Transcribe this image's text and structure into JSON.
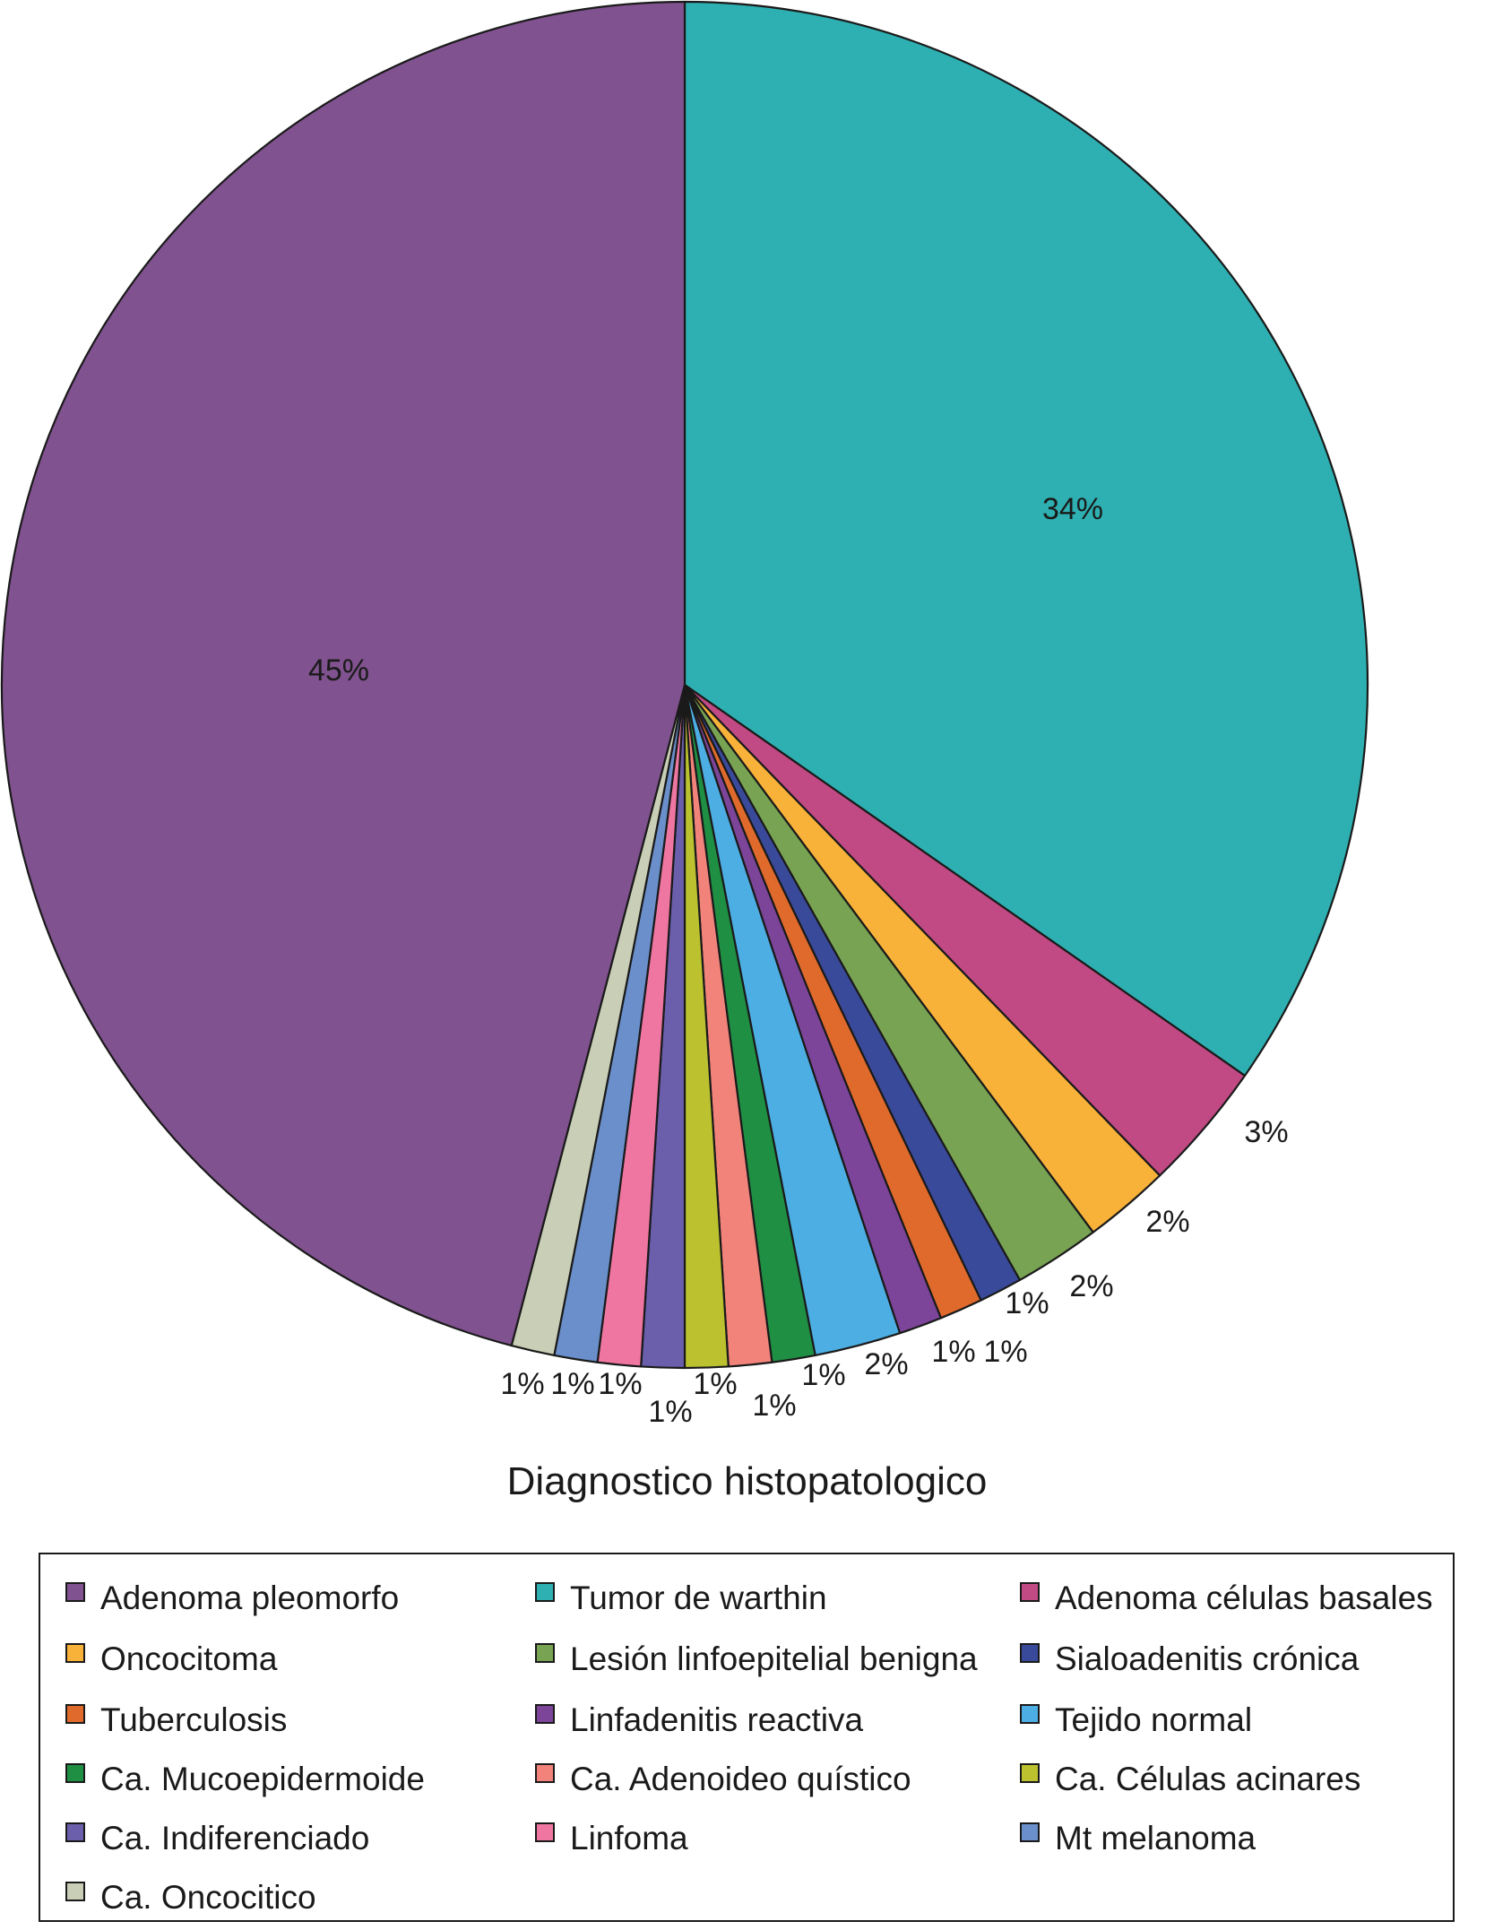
{
  "chart_data": {
    "type": "pie",
    "title": "Diagnostico histopatologico",
    "legend_position": "bottom",
    "slices": [
      {
        "label": "Tumor de warthin",
        "value": 34,
        "display": "34%",
        "color": "#2eb0b2"
      },
      {
        "label": "Adenoma células basales",
        "value": 3,
        "display": "3%",
        "color": "#c14a84"
      },
      {
        "label": "Oncocitoma",
        "value": 2,
        "display": "2%",
        "color": "#f8b23a"
      },
      {
        "label": "Lesión linfoepitelial benigna",
        "value": 2,
        "display": "2%",
        "color": "#78a352"
      },
      {
        "label": "Sialoadenitis crónica",
        "value": 1,
        "display": "1%",
        "color": "#3a4a9a"
      },
      {
        "label": "Tuberculosis",
        "value": 1,
        "display": "1%",
        "color": "#e06a2c"
      },
      {
        "label": "Linfadenitis reactiva",
        "value": 1,
        "display": "1%",
        "color": "#7d4599"
      },
      {
        "label": "Tejido normal",
        "value": 2,
        "display": "2%",
        "color": "#4daee3"
      },
      {
        "label": "Ca. Mucoepidermoide",
        "value": 1,
        "display": "1%",
        "color": "#1f8f44"
      },
      {
        "label": "Ca. Adenoideo quístico",
        "value": 1,
        "display": "1%",
        "color": "#f2837b"
      },
      {
        "label": "Ca. Células acinares",
        "value": 1,
        "display": "1%",
        "color": "#bcc22f"
      },
      {
        "label": "Ca. Indiferenciado",
        "value": 1,
        "display": "1%",
        "color": "#6b5eab"
      },
      {
        "label": "Linfoma",
        "value": 1,
        "display": "1%",
        "color": "#ee76a0"
      },
      {
        "label": "Mt melanoma",
        "value": 1,
        "display": "1%",
        "color": "#6a8fcb"
      },
      {
        "label": "Ca. Oncocitico",
        "value": 1,
        "display": "1%",
        "color": "#c9ceb6"
      },
      {
        "label": "Adenoma pleomorfo",
        "value": 45,
        "display": "45%",
        "color": "#80528f"
      }
    ]
  },
  "legend": {
    "items": [
      {
        "label": "Adenoma pleomorfo",
        "color": "#80528f"
      },
      {
        "label": "Tumor de warthin",
        "color": "#2eb0b2"
      },
      {
        "label": "Adenoma células basales",
        "color": "#c14a84"
      },
      {
        "label": "Oncocitoma",
        "color": "#f8b23a"
      },
      {
        "label": "Lesión linfoepitelial benigna",
        "color": "#78a352"
      },
      {
        "label": "Sialoadenitis crónica",
        "color": "#3a4a9a"
      },
      {
        "label": "Tuberculosis",
        "color": "#e06a2c"
      },
      {
        "label": "Linfadenitis reactiva",
        "color": "#7d4599"
      },
      {
        "label": "Tejido normal",
        "color": "#4daee3"
      },
      {
        "label": "Ca. Mucoepidermoide",
        "color": "#1f8f44"
      },
      {
        "label": "Ca. Adenoideo quístico",
        "color": "#f2837b"
      },
      {
        "label": "Ca. Células acinares",
        "color": "#bcc22f"
      },
      {
        "label": "Ca. Indiferenciado",
        "color": "#6b5eab"
      },
      {
        "label": "Linfoma",
        "color": "#ee76a0"
      },
      {
        "label": "Mt melanoma",
        "color": "#6a8fcb"
      },
      {
        "label": "Ca. Oncocitico",
        "color": "#c9ceb6"
      }
    ]
  }
}
